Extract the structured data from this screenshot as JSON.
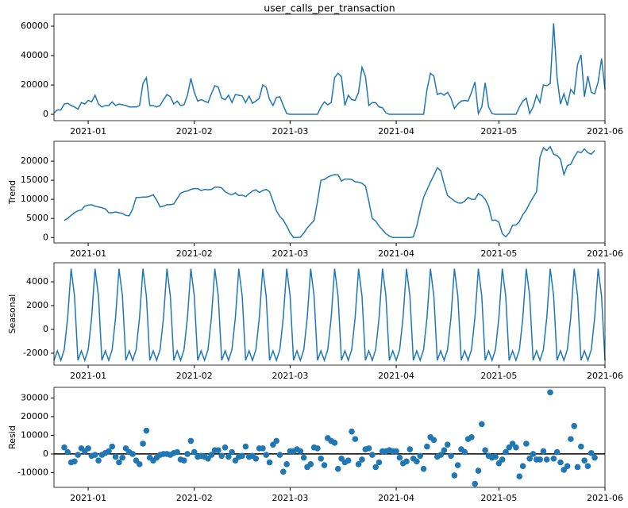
{
  "chart_data": [
    {
      "type": "line",
      "title": "user_calls_per_transaction",
      "color": "#1f77b4",
      "categories": [
        null,
        null,
        null,
        null,
        null,
        null,
        null,
        null,
        null,
        null,
        "2021-01",
        null,
        null,
        null,
        null,
        null,
        null,
        null,
        null,
        null,
        null,
        null,
        null,
        null,
        null,
        null,
        null,
        null,
        null,
        null,
        null,
        null,
        null,
        null,
        null,
        null,
        null,
        null,
        null,
        null,
        null,
        "2021-02",
        null,
        null,
        null,
        null,
        null,
        null,
        null,
        null,
        null,
        null,
        null,
        null,
        null,
        null,
        null,
        null,
        null,
        null,
        null,
        null,
        null,
        null,
        null,
        null,
        null,
        null,
        null,
        "2021-03",
        null,
        null,
        null,
        null,
        null,
        null,
        null,
        null,
        null,
        null,
        null,
        null,
        null,
        null,
        null,
        null,
        null,
        null,
        null,
        null,
        null,
        null,
        null,
        null,
        null,
        null,
        null,
        null,
        null,
        null,
        "2021-04",
        null,
        null,
        null,
        null,
        null,
        null,
        null,
        null,
        null,
        null,
        null,
        null,
        null,
        null,
        null,
        null,
        null,
        null,
        null,
        null,
        null,
        null,
        null,
        null,
        null,
        null,
        null,
        null,
        null,
        "2021-05",
        null,
        null,
        null,
        null,
        null,
        null,
        null,
        null,
        null,
        null,
        null,
        null,
        null,
        null,
        null,
        null,
        null,
        null,
        null,
        null,
        null,
        null,
        null,
        null,
        null,
        null,
        null,
        null,
        null,
        null,
        "2021-06"
      ],
      "values": [
        1000,
        3000,
        3000,
        7000,
        7500,
        6000,
        5000,
        3500,
        8000,
        7000,
        9500,
        8500,
        13000,
        7000,
        5000,
        6000,
        6000,
        8500,
        6000,
        7000,
        6500,
        6000,
        5000,
        5000,
        5000,
        6000,
        21000,
        25000,
        6000,
        6000,
        5000,
        6000,
        10000,
        13500,
        12000,
        7000,
        9000,
        6000,
        6500,
        13000,
        24500,
        15000,
        9000,
        10000,
        9000,
        8000,
        14000,
        19500,
        18500,
        11000,
        10000,
        13000,
        8000,
        13500,
        13000,
        12500,
        8000,
        12500,
        7500,
        9000,
        11000,
        20000,
        18500,
        10000,
        6000,
        11500,
        12000,
        6000,
        500,
        0,
        0,
        0,
        0,
        0,
        0,
        0,
        0,
        0,
        5000,
        8500,
        6500,
        8000,
        25000,
        28000,
        25500,
        6000,
        13000,
        10000,
        9500,
        15000,
        32000,
        26000,
        6000,
        8000,
        8000,
        5000,
        4500,
        1000,
        0,
        0,
        0,
        0,
        0,
        0,
        0,
        0,
        0,
        0,
        0,
        17000,
        28000,
        26000,
        13500,
        14500,
        13000,
        15000,
        11000,
        4000,
        7000,
        9000,
        9500,
        9000,
        15000,
        22000,
        500,
        5000,
        21500,
        5000,
        500,
        0,
        0,
        0,
        0,
        0,
        0,
        0,
        5000,
        9000,
        11000,
        500,
        5000,
        13000,
        8000,
        20000,
        19500,
        21000,
        62000,
        25000,
        7000,
        14000,
        6000,
        17000,
        14000,
        34000,
        40500,
        12000,
        26000,
        15000,
        14000,
        22000,
        38000,
        17000
      ],
      "ylim": [
        -4300,
        68100
      ],
      "yticks": [
        0,
        20000,
        40000,
        60000
      ]
    },
    {
      "type": "line",
      "ylabel": "Trend",
      "color": "#1f77b4",
      "categories": [
        null,
        null,
        null,
        null,
        null,
        null,
        null,
        null,
        null,
        null,
        "2021-01",
        null,
        null,
        null,
        null,
        null,
        null,
        null,
        null,
        null,
        null,
        null,
        null,
        null,
        null,
        null,
        null,
        null,
        null,
        null,
        null,
        null,
        null,
        null,
        null,
        null,
        null,
        null,
        null,
        null,
        null,
        "2021-02",
        null,
        null,
        null,
        null,
        null,
        null,
        null,
        null,
        null,
        null,
        null,
        null,
        null,
        null,
        null,
        null,
        null,
        null,
        null,
        null,
        null,
        null,
        null,
        null,
        null,
        null,
        null,
        "2021-03",
        null,
        null,
        null,
        null,
        null,
        null,
        null,
        null,
        null,
        null,
        null,
        null,
        null,
        null,
        null,
        null,
        null,
        null,
        null,
        null,
        null,
        null,
        null,
        null,
        null,
        null,
        null,
        null,
        null,
        null,
        "2021-04",
        null,
        null,
        null,
        null,
        null,
        null,
        null,
        null,
        null,
        null,
        null,
        null,
        null,
        null,
        null,
        null,
        null,
        null,
        null,
        null,
        null,
        null,
        null,
        null,
        null,
        null,
        null,
        null,
        null,
        "2021-05",
        null,
        null,
        null,
        null,
        null,
        null,
        null,
        null,
        null,
        null,
        null,
        null,
        null,
        null,
        null,
        null,
        null,
        null,
        null,
        null,
        null,
        null,
        null,
        null,
        null,
        null,
        null,
        null,
        null,
        null,
        "2021-06"
      ],
      "values": [
        null,
        null,
        null,
        4500,
        5000,
        5800,
        6500,
        7000,
        7200,
        8200,
        8500,
        8600,
        8200,
        8000,
        7800,
        7500,
        6500,
        6500,
        6700,
        6500,
        6300,
        5800,
        5700,
        7500,
        10500,
        10500,
        10600,
        10600,
        10800,
        11200,
        9800,
        8000,
        8200,
        8600,
        8600,
        8800,
        10200,
        11600,
        12000,
        12200,
        12600,
        12800,
        12800,
        12300,
        12600,
        12500,
        12600,
        13200,
        13200,
        13000,
        12000,
        11500,
        11200,
        11700,
        11000,
        11100,
        10700,
        11500,
        12200,
        12500,
        11800,
        12300,
        12600,
        12000,
        9500,
        7000,
        5500,
        4600,
        3000,
        1200,
        0,
        0,
        100,
        1200,
        2500,
        3500,
        4500,
        9500,
        15000,
        15200,
        15800,
        16200,
        16500,
        16400,
        14800,
        15300,
        15300,
        15200,
        14600,
        14500,
        14200,
        13500,
        9500,
        5000,
        4300,
        3000,
        2000,
        1000,
        400,
        0,
        0,
        0,
        0,
        0,
        0,
        200,
        3000,
        7000,
        10500,
        12500,
        14500,
        16300,
        18300,
        17500,
        14000,
        11000,
        10300,
        9600,
        9100,
        9000,
        9500,
        10500,
        10000,
        10000,
        11500,
        11000,
        10000,
        8200,
        4500,
        4600,
        4000,
        1000,
        200,
        1200,
        3200,
        3300,
        4200,
        6000,
        7200,
        9000,
        10500,
        12000,
        21000,
        23500,
        22800,
        23800,
        21800,
        21500,
        20500,
        16500,
        18800,
        19200,
        21000,
        22500,
        22200,
        23200,
        22200,
        21800,
        22800,
        null,
        null,
        null
      ],
      "ylim": [
        -1400,
        25200
      ],
      "yticks": [
        0,
        5000,
        10000,
        15000,
        20000
      ]
    },
    {
      "type": "line",
      "ylabel": "Seasonal",
      "color": "#1f77b4",
      "categories": [
        null,
        null,
        null,
        null,
        null,
        null,
        null,
        null,
        null,
        null,
        "2021-01",
        null,
        null,
        null,
        null,
        null,
        null,
        null,
        null,
        null,
        null,
        null,
        null,
        null,
        null,
        null,
        null,
        null,
        null,
        null,
        null,
        null,
        null,
        null,
        null,
        null,
        null,
        null,
        null,
        null,
        null,
        "2021-02",
        null,
        null,
        null,
        null,
        null,
        null,
        null,
        null,
        null,
        null,
        null,
        null,
        null,
        null,
        null,
        null,
        null,
        null,
        null,
        null,
        null,
        null,
        null,
        null,
        null,
        null,
        null,
        "2021-03",
        null,
        null,
        null,
        null,
        null,
        null,
        null,
        null,
        null,
        null,
        null,
        null,
        null,
        null,
        null,
        null,
        null,
        null,
        null,
        null,
        null,
        null,
        null,
        null,
        null,
        null,
        null,
        null,
        null,
        null,
        "2021-04",
        null,
        null,
        null,
        null,
        null,
        null,
        null,
        null,
        null,
        null,
        null,
        null,
        null,
        null,
        null,
        null,
        null,
        null,
        null,
        null,
        null,
        null,
        null,
        null,
        null,
        null,
        null,
        null,
        null,
        "2021-05",
        null,
        null,
        null,
        null,
        null,
        null,
        null,
        null,
        null,
        null,
        null,
        null,
        null,
        null,
        null,
        null,
        null,
        null,
        null,
        null,
        null,
        null,
        null,
        null,
        null,
        null,
        null,
        null,
        null,
        null,
        "2021-06"
      ],
      "values": [
        -2600,
        -1800,
        -2600,
        -1700,
        1000,
        5100,
        2800,
        -2600,
        -1800,
        -2600,
        -1700,
        1000,
        5100,
        2800,
        -2600,
        -1800,
        -2600,
        -1700,
        1000,
        5100,
        2800,
        -2600,
        -1800,
        -2600,
        -1700,
        1000,
        5100,
        2800,
        -2600,
        -1800,
        -2600,
        -1700,
        1000,
        5100,
        2800,
        -2600,
        -1800,
        -2600,
        -1700,
        1000,
        5100,
        2800,
        -2600,
        -1800,
        -2600,
        -1700,
        1000,
        5100,
        2800,
        -2600,
        -1800,
        -2600,
        -1700,
        1000,
        5100,
        2800,
        -2600,
        -1800,
        -2600,
        -1700,
        1000,
        5100,
        2800,
        -2600,
        -1800,
        -2600,
        -1700,
        1000,
        5100,
        2800,
        -2600,
        -1800,
        -2600,
        -1700,
        1000,
        5100,
        2800,
        -2600,
        -1800,
        -2600,
        -1700,
        1000,
        5100,
        2800,
        -2600,
        -1800,
        -2600,
        -1700,
        1000,
        5100,
        2800,
        -2600,
        -1800,
        -2600,
        -1700,
        1000,
        5100,
        2800,
        -2600,
        -1800,
        -2600,
        -1700,
        1000,
        5100,
        2800,
        -2600,
        -1800,
        -2600,
        -1700,
        1000,
        5100,
        2800,
        -2600,
        -1800,
        -2600,
        -1700,
        1000,
        5100,
        2800,
        -2600,
        -1800,
        -2600,
        -1700,
        1000,
        5100,
        2800,
        -2600,
        -1800,
        -2600,
        -1700,
        1000,
        5100,
        2800,
        -2600,
        -1800,
        -2600,
        -1700,
        1000,
        5100,
        2800,
        -2600,
        -1800,
        -2600,
        -1700,
        1000,
        5100,
        2800,
        -2600,
        -1800,
        -2600,
        -1700,
        1000,
        5100,
        2800,
        -2600,
        -1800,
        -2600,
        -1700,
        1000,
        5100,
        2800,
        -2600
      ],
      "ylim": [
        -3000,
        5600
      ],
      "yticks": [
        -2000,
        0,
        2000,
        4000
      ]
    },
    {
      "type": "scatter",
      "ylabel": "Resid",
      "color": "#1f77b4",
      "categories": [
        null,
        null,
        null,
        null,
        null,
        null,
        null,
        null,
        null,
        null,
        "2021-01",
        null,
        null,
        null,
        null,
        null,
        null,
        null,
        null,
        null,
        null,
        null,
        null,
        null,
        null,
        null,
        null,
        null,
        null,
        null,
        null,
        null,
        null,
        null,
        null,
        null,
        null,
        null,
        null,
        null,
        null,
        "2021-02",
        null,
        null,
        null,
        null,
        null,
        null,
        null,
        null,
        null,
        null,
        null,
        null,
        null,
        null,
        null,
        null,
        null,
        null,
        null,
        null,
        null,
        null,
        null,
        null,
        null,
        null,
        null,
        "2021-03",
        null,
        null,
        null,
        null,
        null,
        null,
        null,
        null,
        null,
        null,
        null,
        null,
        null,
        null,
        null,
        null,
        null,
        null,
        null,
        null,
        null,
        null,
        null,
        null,
        null,
        null,
        null,
        null,
        null,
        null,
        "2021-04",
        null,
        null,
        null,
        null,
        null,
        null,
        null,
        null,
        null,
        null,
        null,
        null,
        null,
        null,
        null,
        null,
        null,
        null,
        null,
        null,
        null,
        null,
        null,
        null,
        null,
        null,
        null,
        null,
        null,
        "2021-05",
        null,
        null,
        null,
        null,
        null,
        null,
        null,
        null,
        null,
        null,
        null,
        null,
        null,
        null,
        null,
        null,
        null,
        null,
        null,
        null,
        null,
        null,
        null,
        null,
        null,
        null,
        null,
        null,
        null,
        null,
        "2021-06"
      ],
      "values": [
        null,
        null,
        null,
        3500,
        1000,
        -4500,
        -4000,
        -500,
        3000,
        1500,
        3000,
        -1000,
        -500,
        -3500,
        -500,
        500,
        1500,
        4000,
        -1500,
        -4500,
        -2000,
        3000,
        1000,
        0,
        -3500,
        -5500,
        5500,
        12500,
        -2000,
        -3500,
        -2000,
        -500,
        0,
        0,
        -500,
        500,
        1000,
        -3000,
        -3500,
        0,
        7000,
        1000,
        -1500,
        -1000,
        -1500,
        -2500,
        -500,
        2000,
        2000,
        -1000,
        3500,
        -1500,
        1000,
        -3500,
        -1500,
        -1000,
        4000,
        -1500,
        -1000,
        -2500,
        3000,
        3000,
        -500,
        -4500,
        5000,
        7000,
        -500,
        -9500,
        -5500,
        1500,
        1500,
        2500,
        1500,
        -2000,
        -7000,
        -5500,
        3500,
        3000,
        -2500,
        -6000,
        8500,
        7000,
        6000,
        -8000,
        -2500,
        -4500,
        -3500,
        12000,
        8000,
        -5500,
        -3000,
        2500,
        3000,
        -500,
        -7000,
        -4500,
        1500,
        1500,
        2000,
        1500,
        1500,
        -2000,
        -5000,
        -4000,
        2500,
        -2500,
        -4000,
        -1000,
        -8000,
        4000,
        9000,
        7500,
        -1500,
        -500,
        2000,
        5000,
        -1000,
        -11500,
        -6000,
        2500,
        1000,
        8000,
        9000,
        -16000,
        -9000,
        16000,
        2000,
        -1000,
        -2000,
        -1500,
        -5000,
        -3000,
        1000,
        3500,
        5500,
        3500,
        -12000,
        -6500,
        5500,
        -2500,
        0,
        -3000,
        -3000,
        1500,
        -3000,
        33000,
        -2500,
        1000,
        -4500,
        -8500,
        -6500,
        8000,
        15000,
        -7000,
        4000,
        -3500,
        -6500,
        500,
        -2000,
        null,
        null,
        null
      ],
      "ylim": [
        -17900,
        35700
      ],
      "yticks": [
        -10000,
        0,
        10000,
        20000,
        30000
      ]
    }
  ]
}
